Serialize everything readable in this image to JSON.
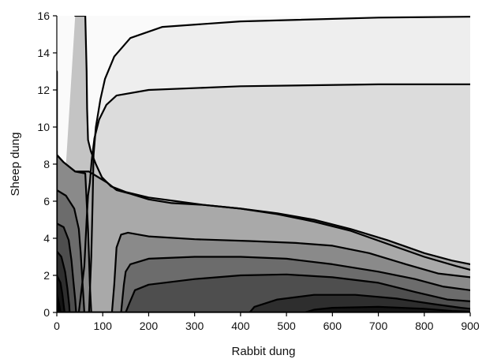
{
  "chart_data": {
    "type": "contour",
    "title": "",
    "xlabel": "Rabbit dung",
    "ylabel": "Sheep dung",
    "xlim": [
      0,
      900
    ],
    "ylim": [
      0,
      16
    ],
    "x_ticks": [
      "0",
      "100",
      "200",
      "300",
      "400",
      "500",
      "600",
      "700",
      "800",
      "900"
    ],
    "y_ticks": [
      "0",
      "2",
      "4",
      "6",
      "8",
      "10",
      "12",
      "14",
      "16"
    ],
    "grid": false,
    "legend": "none",
    "band_colors": [
      "#fafafa",
      "#eeeeee",
      "#dcdcdc",
      "#c4c4c4",
      "#a9a9a9",
      "#8a8a8a",
      "#6c6c6c",
      "#4e4e4e",
      "#2e2e2e",
      "#141414"
    ],
    "contours": [
      {
        "level": 1,
        "points": [
          [
            0,
            16
          ],
          [
            0,
            13
          ],
          [
            0,
            10
          ],
          [
            0,
            7
          ],
          [
            0,
            4
          ],
          [
            0,
            2
          ],
          [
            0,
            0
          ],
          [
            45,
            0
          ],
          [
            70,
            0
          ],
          [
            75,
            3
          ],
          [
            78,
            6
          ],
          [
            80,
            8.5
          ],
          [
            85,
            10
          ],
          [
            95,
            11.5
          ],
          [
            105,
            12.6
          ],
          [
            125,
            13.8
          ],
          [
            160,
            14.8
          ],
          [
            230,
            15.4
          ],
          [
            400,
            15.7
          ],
          [
            700,
            15.9
          ],
          [
            900,
            15.95
          ],
          [
            900,
            16
          ]
        ]
      },
      {
        "level": 2,
        "points": [
          [
            0,
            16
          ],
          [
            0,
            13
          ],
          [
            0,
            10
          ],
          [
            0,
            7
          ],
          [
            0,
            4
          ],
          [
            0,
            2
          ],
          [
            0,
            0
          ],
          [
            25,
            0
          ],
          [
            48,
            0
          ],
          [
            60,
            2.5
          ],
          [
            65,
            5
          ],
          [
            68,
            6.3
          ],
          [
            72,
            7
          ],
          [
            76,
            8.2
          ],
          [
            82,
            9.4
          ],
          [
            92,
            10.4
          ],
          [
            108,
            11.2
          ],
          [
            130,
            11.7
          ],
          [
            200,
            12
          ],
          [
            400,
            12.2
          ],
          [
            700,
            12.3
          ],
          [
            900,
            12.3
          ],
          [
            900,
            16
          ]
        ]
      },
      {
        "level": 3,
        "points": [
          [
            20,
            16
          ],
          [
            40,
            16
          ],
          [
            62,
            16
          ],
          [
            65,
            13
          ],
          [
            66,
            11
          ],
          [
            68,
            9.3
          ],
          [
            74,
            8.7
          ],
          [
            85,
            8
          ],
          [
            98,
            7.3
          ],
          [
            118,
            6.8
          ],
          [
            150,
            6.5
          ],
          [
            200,
            6.2
          ],
          [
            260,
            6
          ],
          [
            320,
            5.8
          ],
          [
            400,
            5.6
          ],
          [
            480,
            5.3
          ],
          [
            560,
            4.9
          ],
          [
            640,
            4.4
          ],
          [
            720,
            3.7
          ],
          [
            800,
            3
          ],
          [
            870,
            2.5
          ],
          [
            900,
            2.3
          ],
          [
            900,
            16
          ]
        ]
      },
      {
        "level": 4,
        "points": [
          [
            0,
            16
          ],
          [
            0,
            13
          ],
          [
            0,
            10
          ],
          [
            0,
            8.5
          ],
          [
            15,
            8.1
          ],
          [
            40,
            7.6
          ],
          [
            70,
            7.6
          ],
          [
            90,
            7.3
          ],
          [
            110,
            7
          ],
          [
            130,
            6.6
          ],
          [
            160,
            6.4
          ],
          [
            200,
            6.1
          ],
          [
            250,
            5.9
          ],
          [
            320,
            5.8
          ],
          [
            400,
            5.6
          ],
          [
            480,
            5.35
          ],
          [
            560,
            5
          ],
          [
            640,
            4.5
          ],
          [
            720,
            3.9
          ],
          [
            800,
            3.2
          ],
          [
            860,
            2.8
          ],
          [
            900,
            2.6
          ],
          [
            900,
            16
          ]
        ]
      },
      {
        "level": 5,
        "points": [
          [
            0,
            16
          ],
          [
            0,
            8.5
          ],
          [
            15,
            8.1
          ],
          [
            40,
            7.6
          ],
          [
            62,
            7.5
          ],
          [
            65,
            6
          ],
          [
            68,
            4.5
          ],
          [
            70,
            3
          ],
          [
            72,
            1.5
          ],
          [
            74,
            0.5
          ],
          [
            75,
            0
          ],
          [
            90,
            0
          ],
          [
            100,
            0
          ],
          [
            110,
            0
          ],
          [
            120,
            0
          ],
          [
            125,
            1.5
          ],
          [
            130,
            3.5
          ],
          [
            140,
            4.2
          ],
          [
            155,
            4.3
          ],
          [
            200,
            4.1
          ],
          [
            300,
            3.95
          ],
          [
            420,
            3.85
          ],
          [
            520,
            3.75
          ],
          [
            600,
            3.6
          ],
          [
            680,
            3.2
          ],
          [
            760,
            2.6
          ],
          [
            830,
            2.1
          ],
          [
            900,
            1.9
          ],
          [
            900,
            16
          ]
        ]
      },
      {
        "level": 6,
        "points": [
          [
            0,
            16
          ],
          [
            0,
            6.6
          ],
          [
            20,
            6.3
          ],
          [
            38,
            5.6
          ],
          [
            48,
            4.5
          ],
          [
            52,
            3.2
          ],
          [
            55,
            2
          ],
          [
            58,
            0.8
          ],
          [
            60,
            0
          ],
          [
            75,
            0
          ],
          [
            75,
            0
          ],
          [
            130,
            0
          ],
          [
            140,
            0
          ],
          [
            146,
            1.5
          ],
          [
            150,
            2.2
          ],
          [
            160,
            2.6
          ],
          [
            200,
            2.9
          ],
          [
            300,
            3
          ],
          [
            400,
            3
          ],
          [
            500,
            2.9
          ],
          [
            600,
            2.6
          ],
          [
            700,
            2.2
          ],
          [
            780,
            1.8
          ],
          [
            840,
            1.4
          ],
          [
            900,
            1.2
          ],
          [
            900,
            16
          ]
        ]
      },
      {
        "level": 7,
        "points": [
          [
            0,
            16
          ],
          [
            0,
            4.8
          ],
          [
            15,
            4.6
          ],
          [
            26,
            3.9
          ],
          [
            32,
            2.8
          ],
          [
            36,
            1.7
          ],
          [
            40,
            0.7
          ],
          [
            42,
            0
          ],
          [
            60,
            0
          ],
          [
            150,
            0
          ],
          [
            158,
            0.5
          ],
          [
            170,
            1.2
          ],
          [
            200,
            1.5
          ],
          [
            300,
            1.8
          ],
          [
            400,
            2
          ],
          [
            500,
            2.05
          ],
          [
            600,
            1.9
          ],
          [
            700,
            1.6
          ],
          [
            780,
            1.1
          ],
          [
            850,
            0.7
          ],
          [
            900,
            0.6
          ],
          [
            900,
            16
          ]
        ]
      },
      {
        "level": 8,
        "points": [
          [
            0,
            16
          ],
          [
            0,
            3.3
          ],
          [
            10,
            3
          ],
          [
            18,
            2.2
          ],
          [
            23,
            1.3
          ],
          [
            27,
            0.4
          ],
          [
            28,
            0
          ],
          [
            42,
            0
          ],
          [
            420,
            0
          ],
          [
            430,
            0.3
          ],
          [
            480,
            0.7
          ],
          [
            560,
            0.95
          ],
          [
            650,
            0.95
          ],
          [
            740,
            0.75
          ],
          [
            820,
            0.45
          ],
          [
            880,
            0.25
          ],
          [
            900,
            0.2
          ],
          [
            900,
            16
          ]
        ]
      },
      {
        "level": 9,
        "points": [
          [
            0,
            16
          ],
          [
            0,
            2
          ],
          [
            8,
            1.6
          ],
          [
            12,
            1
          ],
          [
            15,
            0.4
          ],
          [
            17,
            0
          ],
          [
            28,
            0
          ],
          [
            540,
            0
          ],
          [
            560,
            0.15
          ],
          [
            600,
            0.25
          ],
          [
            700,
            0.3
          ],
          [
            800,
            0.2
          ],
          [
            860,
            0.08
          ],
          [
            900,
            0.05
          ],
          [
            900,
            16
          ]
        ]
      },
      {
        "level": 10,
        "points": [
          [
            0,
            16
          ],
          [
            0,
            1
          ],
          [
            3,
            0.7
          ],
          [
            6,
            0.3
          ],
          [
            8,
            0
          ],
          [
            17,
            0
          ],
          [
            900,
            0
          ],
          [
            900,
            16
          ]
        ]
      }
    ]
  }
}
